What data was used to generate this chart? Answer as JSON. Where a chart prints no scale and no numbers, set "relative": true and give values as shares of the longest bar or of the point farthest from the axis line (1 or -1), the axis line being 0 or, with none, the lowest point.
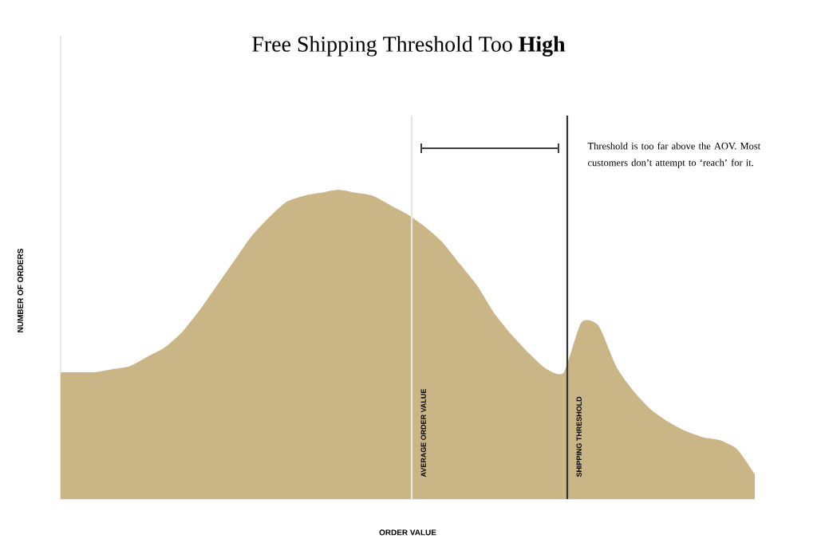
{
  "chart_data": {
    "type": "area",
    "title": "Free Shipping Threshold Too **High**",
    "xlabel": "ORDER VALUE",
    "ylabel": "NUMBER OF ORDERS",
    "relative": true,
    "color": "#c9b586",
    "categories": [
      null,
      null,
      null,
      null,
      null,
      null,
      null,
      null,
      null,
      null,
      null,
      null,
      null,
      null,
      null,
      null,
      null,
      null,
      null,
      null,
      null,
      null,
      null,
      null,
      null,
      null,
      null,
      null,
      null,
      null,
      null,
      null,
      null,
      null,
      null,
      null,
      null,
      null,
      null,
      null,
      null
    ],
    "values": [
      0.41,
      0.41,
      0.41,
      0.42,
      0.43,
      0.46,
      0.49,
      0.54,
      0.61,
      0.69,
      0.77,
      0.85,
      0.91,
      0.96,
      0.98,
      0.99,
      1,
      0.99,
      0.98,
      0.95,
      0.92,
      0.88,
      0.83,
      0.76,
      0.69,
      0.6,
      0.53,
      0.47,
      0.42,
      0.41,
      0.57,
      0.56,
      0.43,
      0.35,
      0.29,
      0.25,
      0.22,
      0.2,
      0.19,
      0.16,
      0.08
    ],
    "annotations": [
      "AVERAGE ORDER VALUE",
      "SHIPPING THRESHOLD",
      "Threshold is too far above the AOV. Most customers don’t attempt to ‘reach’ for it."
    ]
  }
}
